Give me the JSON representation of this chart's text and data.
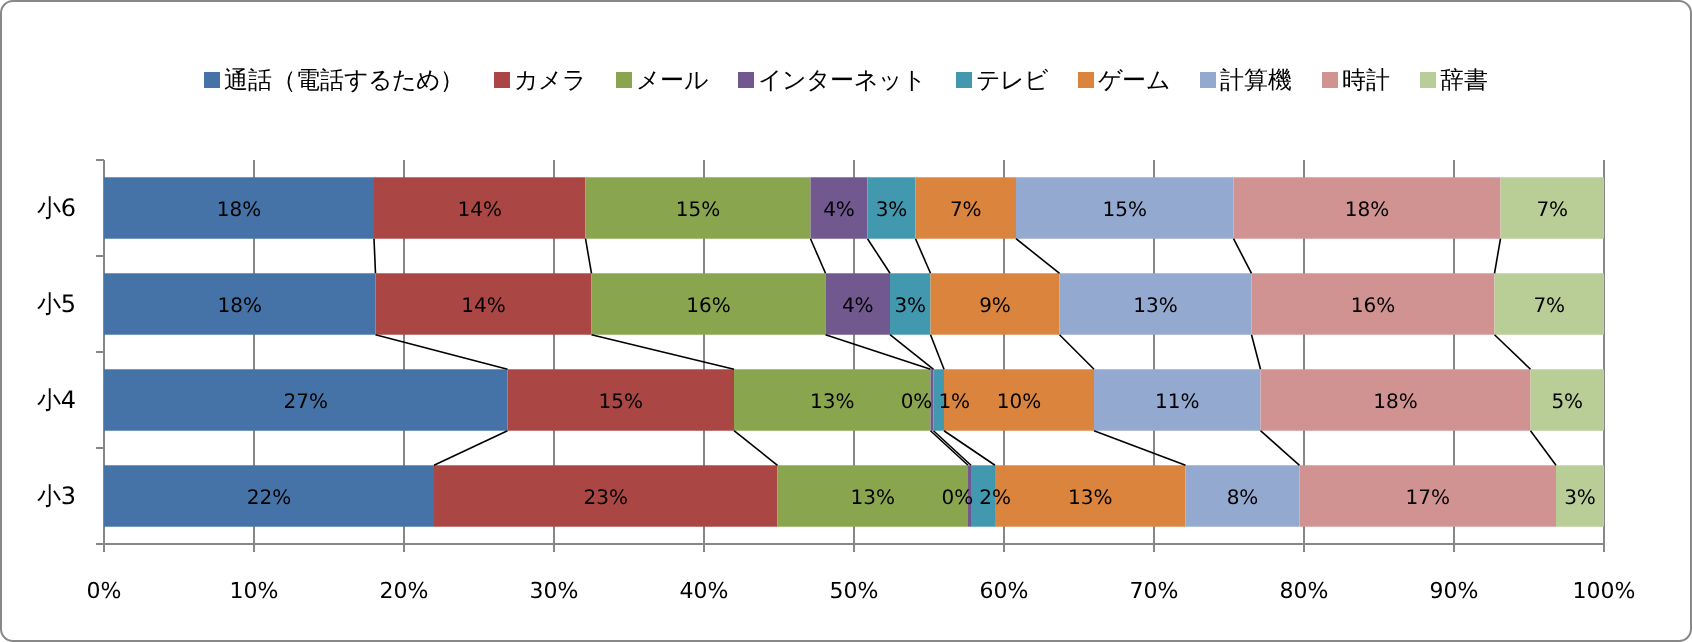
{
  "chart_data": {
    "type": "bar",
    "orientation": "horizontal",
    "stacked": true,
    "categories": [
      "小6",
      "小5",
      "小4",
      "小3"
    ],
    "series": [
      {
        "name": "通話（電話するため）",
        "color": "#4572a7",
        "values": [
          18.0,
          18.1,
          26.9,
          22.0
        ],
        "value_labels": [
          "18%",
          "18%",
          "27%",
          "22%"
        ]
      },
      {
        "name": "カメラ",
        "color": "#aa4643",
        "values": [
          14.1,
          14.4,
          15.1,
          22.9
        ],
        "value_labels": [
          "14%",
          "14%",
          "15%",
          "23%"
        ]
      },
      {
        "name": "メール",
        "color": "#89a54e",
        "values": [
          15.0,
          15.6,
          13.1,
          12.7
        ],
        "value_labels": [
          "15%",
          "16%",
          "13%",
          "13%"
        ]
      },
      {
        "name": "インターネット",
        "color": "#71588f",
        "values": [
          3.8,
          4.3,
          0.2,
          0.2
        ],
        "value_labels": [
          "4%",
          "4%",
          "0%",
          "0%"
        ]
      },
      {
        "name": "テレビ",
        "color": "#4198af",
        "values": [
          3.2,
          2.7,
          0.7,
          1.6
        ],
        "value_labels": [
          "3%",
          "3%",
          "1%",
          "2%"
        ]
      },
      {
        "name": "ゲーム",
        "color": "#db843d",
        "values": [
          6.7,
          8.6,
          10.0,
          12.7
        ],
        "value_labels": [
          "7%",
          "9%",
          "10%",
          "13%"
        ]
      },
      {
        "name": "計算機",
        "color": "#93a9cf",
        "values": [
          14.5,
          12.8,
          11.1,
          7.6
        ],
        "value_labels": [
          "15%",
          "13%",
          "11%",
          "8%"
        ]
      },
      {
        "name": "時計",
        "color": "#d19392",
        "values": [
          17.8,
          16.2,
          18.0,
          17.1
        ],
        "value_labels": [
          "18%",
          "16%",
          "18%",
          "17%"
        ]
      },
      {
        "name": "辞書",
        "color": "#b9cd96",
        "values": [
          6.9,
          7.3,
          4.9,
          3.2
        ],
        "value_labels": [
          "7%",
          "7%",
          "5%",
          "3%"
        ]
      }
    ],
    "xlim": [
      0,
      100
    ],
    "xticks": [
      {
        "value": 0,
        "label": "0%"
      },
      {
        "value": 10,
        "label": "10%"
      },
      {
        "value": 20,
        "label": "20%"
      },
      {
        "value": 30,
        "label": "30%"
      },
      {
        "value": 40,
        "label": "40%"
      },
      {
        "value": 50,
        "label": "50%"
      },
      {
        "value": 60,
        "label": "60%"
      },
      {
        "value": 70,
        "label": "70%"
      },
      {
        "value": 80,
        "label": "80%"
      },
      {
        "value": 90,
        "label": "90%"
      },
      {
        "value": 100,
        "label": "100%"
      }
    ],
    "grid": "x",
    "legend": "top"
  }
}
